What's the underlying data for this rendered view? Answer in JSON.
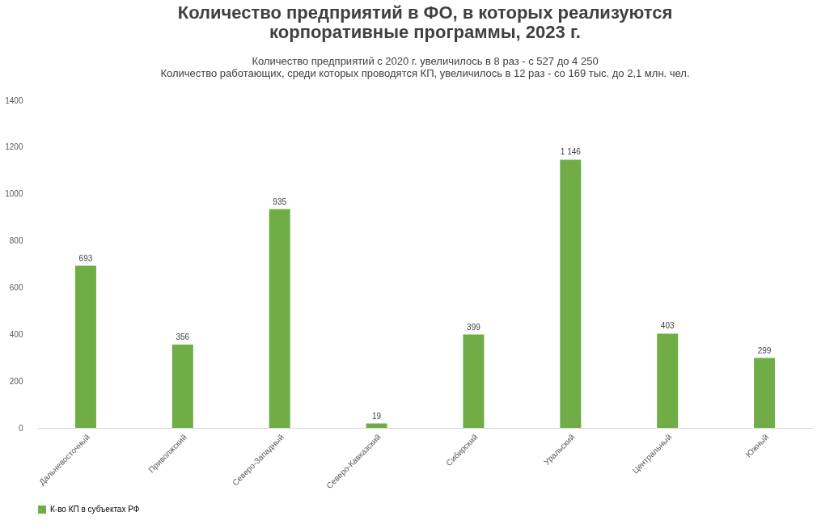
{
  "chart_data": {
    "type": "bar",
    "title": "Количество предприятий в ФО, в которых реализуются корпоративные программы, 2023 г.",
    "subtitle": "Количество предприятий с 2020 г. увеличилось в 8 раз - с 527 до 4 250\nКоличество работающих, среди которых проводятся КП, увеличилось в 12 раз - со 169 тыс. до 2,1 млн. чел.",
    "categories": [
      "Дальневосточный",
      "Приволжский",
      "Северо-Западный",
      "Северо-Кавказский",
      "Сибирский",
      "Уральский",
      "Центральный",
      "Южный"
    ],
    "series": [
      {
        "name": "К-во КП в субъектах РФ",
        "color": "#70ad47",
        "values": [
          693,
          356,
          935,
          19,
          399,
          1146,
          403,
          299
        ],
        "value_labels": [
          "693",
          "356",
          "935",
          "19",
          "399",
          "1 146",
          "403",
          "299"
        ]
      }
    ],
    "ylim": [
      0,
      1400
    ],
    "yticks": [
      0,
      200,
      400,
      600,
      800,
      1000,
      1200,
      1400
    ],
    "grid": false,
    "legend": "bottom"
  }
}
